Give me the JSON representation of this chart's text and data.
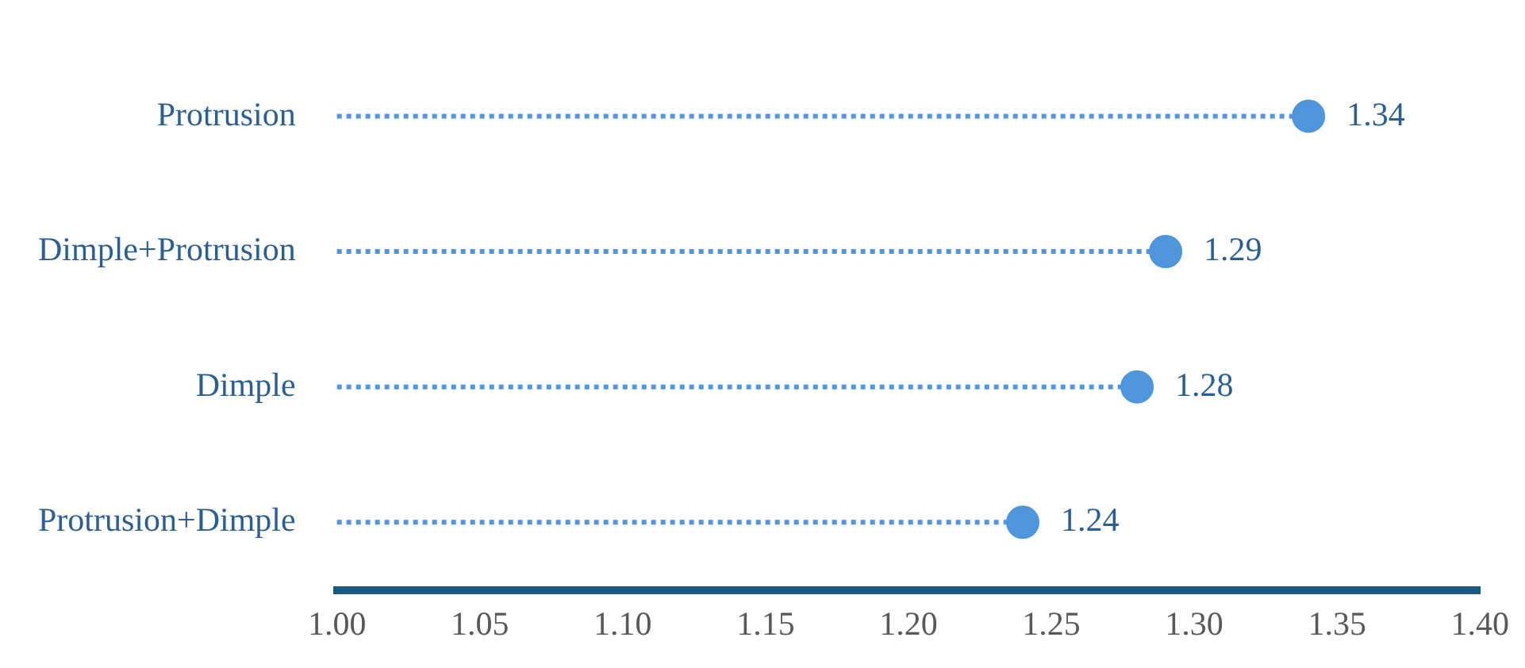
{
  "chart_data": {
    "type": "lollipop",
    "orientation": "horizontal",
    "categories": [
      "Protrusion",
      "Dimple+Protrusion",
      "Dimple",
      "Protrusion+Dimple"
    ],
    "values": [
      1.34,
      1.29,
      1.28,
      1.24
    ],
    "color": "#4f96dc",
    "xlim": [
      1.0,
      1.4
    ],
    "xticks": [
      {
        "value": 1.0,
        "label": "1.00"
      },
      {
        "value": 1.05,
        "label": "1.05"
      },
      {
        "value": 1.1,
        "label": "1.10"
      },
      {
        "value": 1.15,
        "label": "1.15"
      },
      {
        "value": 1.2,
        "label": "1.20"
      },
      {
        "value": 1.25,
        "label": "1.25"
      },
      {
        "value": 1.3,
        "label": "1.30"
      },
      {
        "value": 1.35,
        "label": "1.35"
      },
      {
        "value": 1.4,
        "label": "1.40"
      }
    ],
    "data_labels": true,
    "grid": false,
    "line_style": "dotted",
    "marker": "circle"
  }
}
